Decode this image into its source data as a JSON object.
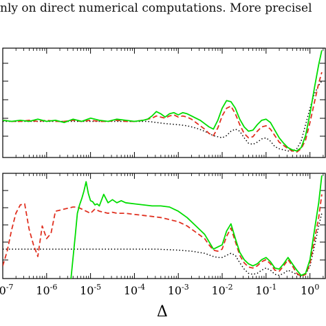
{
  "caption_text": "nly on direct numerical computations. More precisel",
  "chart_data": [
    {
      "type": "line",
      "panel": "top",
      "xscale": "log",
      "xlim_exp": [
        -7,
        0.35
      ],
      "ylim": [
        0,
        1
      ],
      "grid": false,
      "series": [
        {
          "color": "#00dd00",
          "style": "solid",
          "x_exp": [
            -7.0,
            -6.8,
            -6.6,
            -6.4,
            -6.2,
            -6.0,
            -5.8,
            -5.6,
            -5.4,
            -5.2,
            -5.0,
            -4.8,
            -4.6,
            -4.4,
            -4.2,
            -4.0,
            -3.8,
            -3.7,
            -3.6,
            -3.5,
            -3.4,
            -3.3,
            -3.2,
            -3.1,
            -3.0,
            -2.9,
            -2.8,
            -2.7,
            -2.6,
            -2.5,
            -2.4,
            -2.3,
            -2.2,
            -2.1,
            -2.0,
            -1.9,
            -1.8,
            -1.7,
            -1.6,
            -1.5,
            -1.4,
            -1.3,
            -1.2,
            -1.1,
            -1.0,
            -0.9,
            -0.8,
            -0.7,
            -0.6,
            -0.5,
            -0.4,
            -0.3,
            -0.2,
            -0.1,
            0.0,
            0.1,
            0.2,
            0.27
          ],
          "y": [
            0.34,
            0.33,
            0.34,
            0.33,
            0.35,
            0.33,
            0.34,
            0.32,
            0.35,
            0.33,
            0.36,
            0.34,
            0.33,
            0.35,
            0.34,
            0.33,
            0.34,
            0.35,
            0.38,
            0.42,
            0.4,
            0.37,
            0.4,
            0.41,
            0.39,
            0.41,
            0.4,
            0.38,
            0.36,
            0.34,
            0.31,
            0.28,
            0.26,
            0.34,
            0.45,
            0.52,
            0.51,
            0.45,
            0.35,
            0.28,
            0.24,
            0.25,
            0.3,
            0.34,
            0.35,
            0.32,
            0.25,
            0.18,
            0.13,
            0.09,
            0.07,
            0.06,
            0.09,
            0.2,
            0.4,
            0.63,
            0.85,
            0.98
          ]
        },
        {
          "color": "#e03020",
          "style": "dashed",
          "x_exp": [
            -7.0,
            -6.8,
            -6.6,
            -6.4,
            -6.2,
            -6.0,
            -5.8,
            -5.6,
            -5.4,
            -5.2,
            -5.0,
            -4.8,
            -4.6,
            -4.4,
            -4.2,
            -4.0,
            -3.8,
            -3.7,
            -3.6,
            -3.5,
            -3.4,
            -3.3,
            -3.2,
            -3.1,
            -3.0,
            -2.9,
            -2.8,
            -2.7,
            -2.6,
            -2.5,
            -2.4,
            -2.3,
            -2.2,
            -2.1,
            -2.0,
            -1.9,
            -1.8,
            -1.7,
            -1.6,
            -1.5,
            -1.4,
            -1.3,
            -1.2,
            -1.1,
            -1.0,
            -0.9,
            -0.8,
            -0.7,
            -0.6,
            -0.5,
            -0.4,
            -0.3,
            -0.2,
            -0.1,
            0.0,
            0.1,
            0.2,
            0.27
          ],
          "y": [
            0.34,
            0.33,
            0.33,
            0.34,
            0.33,
            0.34,
            0.33,
            0.33,
            0.34,
            0.33,
            0.34,
            0.33,
            0.33,
            0.34,
            0.33,
            0.33,
            0.34,
            0.35,
            0.36,
            0.38,
            0.37,
            0.36,
            0.38,
            0.39,
            0.37,
            0.38,
            0.37,
            0.35,
            0.32,
            0.29,
            0.26,
            0.22,
            0.2,
            0.27,
            0.38,
            0.45,
            0.47,
            0.4,
            0.3,
            0.22,
            0.18,
            0.19,
            0.24,
            0.28,
            0.29,
            0.26,
            0.2,
            0.14,
            0.11,
            0.08,
            0.06,
            0.05,
            0.08,
            0.16,
            0.32,
            0.5,
            0.68,
            0.78
          ]
        },
        {
          "color": "#000000",
          "style": "dotted",
          "x_exp": [
            -7.0,
            -6.5,
            -6.0,
            -5.5,
            -5.0,
            -4.5,
            -4.0,
            -3.7,
            -3.5,
            -3.3,
            -3.0,
            -2.8,
            -2.6,
            -2.4,
            -2.2,
            -2.0,
            -1.9,
            -1.8,
            -1.7,
            -1.6,
            -1.5,
            -1.4,
            -1.3,
            -1.2,
            -1.1,
            -1.0,
            -0.9,
            -0.8,
            -0.7,
            -0.6,
            -0.5,
            -0.4,
            -0.3,
            -0.2,
            -0.1,
            0.0,
            0.1,
            0.2,
            0.27
          ],
          "y": [
            0.33,
            0.33,
            0.33,
            0.33,
            0.33,
            0.33,
            0.33,
            0.33,
            0.32,
            0.31,
            0.3,
            0.29,
            0.27,
            0.24,
            0.2,
            0.18,
            0.2,
            0.24,
            0.26,
            0.24,
            0.18,
            0.13,
            0.12,
            0.14,
            0.17,
            0.18,
            0.15,
            0.1,
            0.08,
            0.07,
            0.06,
            0.06,
            0.08,
            0.15,
            0.3,
            0.45,
            0.58,
            0.66,
            0.7
          ]
        }
      ]
    },
    {
      "type": "line",
      "panel": "bottom",
      "xscale": "log",
      "xlim_exp": [
        -7,
        0.35
      ],
      "ylim": [
        0,
        1
      ],
      "grid": false,
      "xlabel": "Δ",
      "xtick_exponents": [
        "-7",
        "-6",
        "-5",
        "-4",
        "-3",
        "-2",
        "-1",
        "0"
      ],
      "xtick_base": "10",
      "series": [
        {
          "color": "#00dd00",
          "style": "solid",
          "x_exp": [
            -5.45,
            -5.35,
            -5.3,
            -5.25,
            -5.2,
            -5.15,
            -5.1,
            -5.05,
            -5.0,
            -4.95,
            -4.9,
            -4.85,
            -4.8,
            -4.7,
            -4.6,
            -4.5,
            -4.4,
            -4.3,
            -4.2,
            -4.0,
            -3.8,
            -3.6,
            -3.4,
            -3.2,
            -3.0,
            -2.8,
            -2.6,
            -2.4,
            -2.3,
            -2.2,
            -2.1,
            -2.0,
            -1.9,
            -1.8,
            -1.7,
            -1.6,
            -1.5,
            -1.4,
            -1.3,
            -1.2,
            -1.1,
            -1.0,
            -0.9,
            -0.8,
            -0.7,
            -0.6,
            -0.5,
            -0.4,
            -0.3,
            -0.2,
            -0.1,
            0.0,
            0.1,
            0.2,
            0.27
          ],
          "y": [
            -0.02,
            0.4,
            0.62,
            0.7,
            0.76,
            0.83,
            0.92,
            0.81,
            0.74,
            0.73,
            0.7,
            0.71,
            0.69,
            0.8,
            0.72,
            0.75,
            0.72,
            0.74,
            0.72,
            0.71,
            0.7,
            0.69,
            0.69,
            0.68,
            0.64,
            0.58,
            0.5,
            0.42,
            0.35,
            0.28,
            0.3,
            0.32,
            0.45,
            0.52,
            0.38,
            0.25,
            0.18,
            0.14,
            0.12,
            0.14,
            0.18,
            0.2,
            0.16,
            0.1,
            0.09,
            0.14,
            0.2,
            0.14,
            0.08,
            0.03,
            0.05,
            0.18,
            0.45,
            0.72,
            0.98
          ]
        },
        {
          "color": "#e03020",
          "style": "dashed",
          "x_exp": [
            -7.0,
            -6.9,
            -6.8,
            -6.7,
            -6.6,
            -6.5,
            -6.4,
            -6.3,
            -6.2,
            -6.1,
            -6.0,
            -5.9,
            -5.8,
            -5.7,
            -5.6,
            -5.5,
            -5.4,
            -5.3,
            -5.2,
            -5.1,
            -5.0,
            -4.9,
            -4.8,
            -4.7,
            -4.6,
            -4.5,
            -4.4,
            -4.2,
            -4.0,
            -3.8,
            -3.6,
            -3.4,
            -3.2,
            -3.0,
            -2.8,
            -2.6,
            -2.4,
            -2.3,
            -2.2,
            -2.1,
            -2.0,
            -1.9,
            -1.8,
            -1.7,
            -1.6,
            -1.5,
            -1.4,
            -1.3,
            -1.2,
            -1.1,
            -1.0,
            -0.9,
            -0.8,
            -0.7,
            -0.6,
            -0.5,
            -0.4,
            -0.3,
            -0.2,
            -0.1,
            0.0,
            0.1,
            0.2,
            0.27
          ],
          "y": [
            0.12,
            0.26,
            0.46,
            0.62,
            0.7,
            0.71,
            0.47,
            0.32,
            0.21,
            0.5,
            0.38,
            0.43,
            0.64,
            0.65,
            0.66,
            0.67,
            0.68,
            0.68,
            0.66,
            0.64,
            0.62,
            0.66,
            0.64,
            0.63,
            0.62,
            0.63,
            0.62,
            0.62,
            0.61,
            0.6,
            0.59,
            0.58,
            0.56,
            0.54,
            0.5,
            0.44,
            0.38,
            0.32,
            0.27,
            0.26,
            0.28,
            0.4,
            0.48,
            0.35,
            0.22,
            0.15,
            0.11,
            0.1,
            0.12,
            0.16,
            0.18,
            0.14,
            0.08,
            0.07,
            0.12,
            0.18,
            0.12,
            0.05,
            0.02,
            0.04,
            0.14,
            0.36,
            0.58,
            0.8
          ]
        },
        {
          "color": "#000000",
          "style": "dotted",
          "x_exp": [
            -7.0,
            -6.0,
            -5.5,
            -5.0,
            -4.5,
            -4.0,
            -3.5,
            -3.0,
            -2.7,
            -2.4,
            -2.2,
            -2.1,
            -2.0,
            -1.9,
            -1.8,
            -1.7,
            -1.6,
            -1.5,
            -1.4,
            -1.3,
            -1.2,
            -1.1,
            -1.0,
            -0.9,
            -0.8,
            -0.7,
            -0.6,
            -0.5,
            -0.4,
            -0.3,
            -0.2,
            -0.1,
            0.0,
            0.1,
            0.2,
            0.27
          ],
          "y": [
            0.28,
            0.28,
            0.28,
            0.28,
            0.28,
            0.28,
            0.28,
            0.27,
            0.26,
            0.24,
            0.21,
            0.2,
            0.2,
            0.22,
            0.24,
            0.22,
            0.15,
            0.09,
            0.05,
            0.04,
            0.05,
            0.08,
            0.1,
            0.08,
            0.04,
            0.03,
            0.05,
            0.08,
            0.06,
            0.04,
            0.02,
            0.04,
            0.12,
            0.3,
            0.5,
            0.62
          ]
        }
      ]
    }
  ]
}
